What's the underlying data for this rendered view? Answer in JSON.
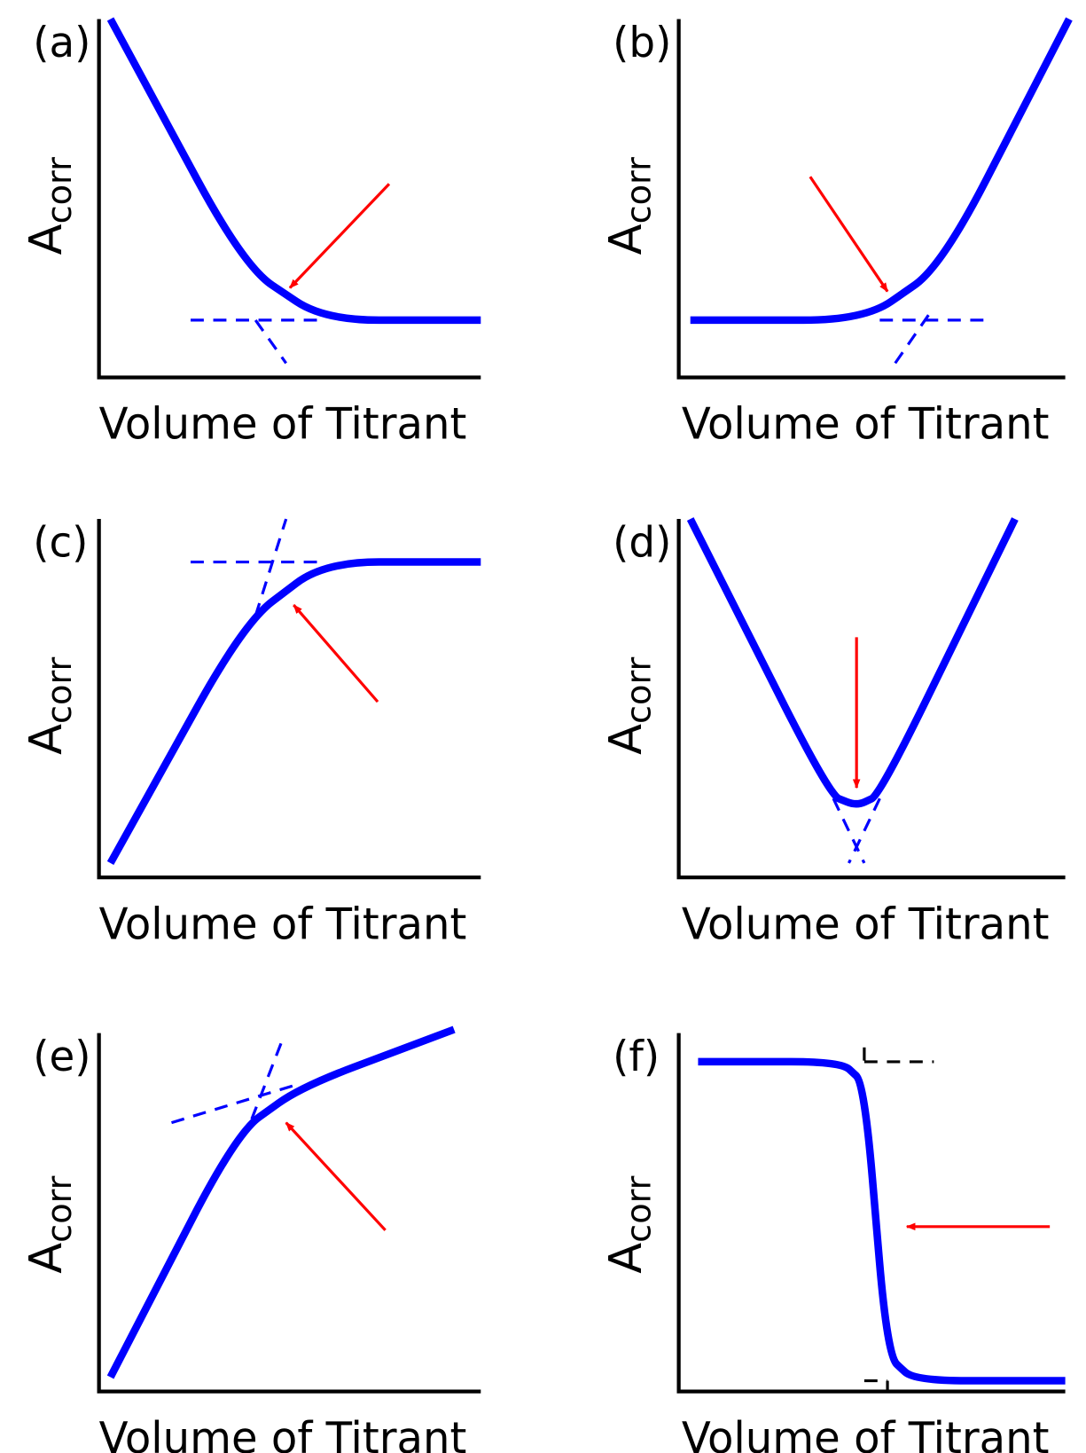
{
  "colors": {
    "curve": "#0000ff",
    "arrow": "#ff0000",
    "axis": "#000000",
    "guide_f": "#000000"
  },
  "chart_data": [
    {
      "type": "line",
      "panel": "(a)",
      "ylabel": "A",
      "ylabel_sub": "corr",
      "xlabel": "Volume of Titrant",
      "description_shape": "decreasing then flat",
      "xlim": [
        0,
        10
      ],
      "ylim": [
        0,
        10
      ],
      "curve": [
        [
          0.3,
          10
        ],
        [
          3.8,
          3.1
        ],
        [
          5.9,
          1.6
        ],
        [
          10,
          1.6
        ]
      ],
      "extrapolations": [
        [
          [
            2.4,
            1.6
          ],
          [
            5.9,
            1.6
          ]
        ],
        [
          [
            4.1,
            1.6
          ],
          [
            4.9,
            0.4
          ]
        ]
      ],
      "arrow": {
        "from": [
          7.6,
          5.4
        ],
        "to": [
          5.0,
          2.5
        ]
      }
    },
    {
      "type": "line",
      "panel": "(b)",
      "ylabel": "A",
      "ylabel_sub": "corr",
      "xlabel": "Volume of Titrant",
      "xlim": [
        0,
        10
      ],
      "ylim": [
        0,
        10
      ],
      "curve": [
        [
          0.3,
          1.6
        ],
        [
          4.8,
          1.6
        ],
        [
          6.8,
          3.1
        ],
        [
          10.1,
          10
        ]
      ],
      "extrapolations": [
        [
          [
            5.2,
            1.6
          ],
          [
            8.1,
            1.6
          ]
        ],
        [
          [
            5.6,
            0.4
          ],
          [
            6.5,
            1.8
          ]
        ]
      ],
      "arrow": {
        "from": [
          3.4,
          5.6
        ],
        "to": [
          5.4,
          2.4
        ]
      }
    },
    {
      "type": "line",
      "panel": "(c)",
      "ylabel": "A",
      "ylabel_sub": "corr",
      "xlabel": "Volume of Titrant",
      "xlim": [
        0,
        10
      ],
      "ylim": [
        0,
        10
      ],
      "curve": [
        [
          0.3,
          0.4
        ],
        [
          3.8,
          7.1
        ],
        [
          5.9,
          8.8
        ],
        [
          10,
          8.8
        ]
      ],
      "extrapolations": [
        [
          [
            2.4,
            8.8
          ],
          [
            5.9,
            8.8
          ]
        ],
        [
          [
            4.1,
            7.3
          ],
          [
            4.9,
            10
          ]
        ]
      ],
      "arrow": {
        "from": [
          7.3,
          4.9
        ],
        "to": [
          5.1,
          7.6
        ]
      }
    },
    {
      "type": "line",
      "panel": "(d)",
      "ylabel": "A",
      "ylabel_sub": "corr",
      "xlabel": "Volume of Titrant",
      "xlim": [
        0,
        10
      ],
      "ylim": [
        0,
        10
      ],
      "curve": [
        [
          0.3,
          10
        ],
        [
          3.9,
          2.3
        ],
        [
          4.6,
          2.0
        ],
        [
          5.2,
          2.3
        ],
        [
          8.7,
          10
        ]
      ],
      "extrapolations": [
        [
          [
            4.0,
            2.2
          ],
          [
            4.8,
            0.4
          ]
        ],
        [
          [
            5.2,
            2.2
          ],
          [
            4.4,
            0.4
          ]
        ]
      ],
      "arrow": {
        "from": [
          4.6,
          6.7
        ],
        "to": [
          4.6,
          2.5
        ]
      }
    },
    {
      "type": "line",
      "panel": "(e)",
      "ylabel": "A",
      "ylabel_sub": "corr",
      "xlabel": "Volume of Titrant",
      "xlim": [
        0,
        10
      ],
      "ylim": [
        0,
        10
      ],
      "curve": [
        [
          0.3,
          0.4
        ],
        [
          3.6,
          7.2
        ],
        [
          5.3,
          8.5
        ],
        [
          9.3,
          10.1
        ]
      ],
      "extrapolations": [
        [
          [
            1.9,
            7.5
          ],
          [
            5.3,
            8.6
          ]
        ],
        [
          [
            4.0,
            7.6
          ],
          [
            4.8,
            9.8
          ]
        ]
      ],
      "arrow": {
        "from": [
          7.5,
          4.5
        ],
        "to": [
          4.9,
          7.5
        ]
      }
    },
    {
      "type": "line",
      "panel": "(f)",
      "ylabel": "A",
      "ylabel_sub": "corr",
      "xlabel": "Volume of Titrant",
      "xlim": [
        0,
        10
      ],
      "ylim": [
        0,
        10
      ],
      "curve": [
        [
          0.5,
          9.2
        ],
        [
          4.2,
          9.2
        ],
        [
          4.8,
          8.6
        ],
        [
          5.4,
          1.0
        ],
        [
          6.1,
          0.3
        ],
        [
          10,
          0.3
        ]
      ],
      "extrapolations": [
        [
          [
            4.8,
            9.2
          ],
          [
            6.6,
            9.2
          ]
        ],
        [
          [
            4.8,
            9.6
          ],
          [
            4.8,
            9.2
          ]
        ],
        [
          [
            4.8,
            0.3
          ],
          [
            5.4,
            0.3
          ]
        ],
        [
          [
            5.4,
            0.3
          ],
          [
            5.4,
            0.0
          ]
        ]
      ],
      "arrow": {
        "from": [
          9.6,
          4.6
        ],
        "to": [
          5.9,
          4.6
        ]
      }
    }
  ]
}
